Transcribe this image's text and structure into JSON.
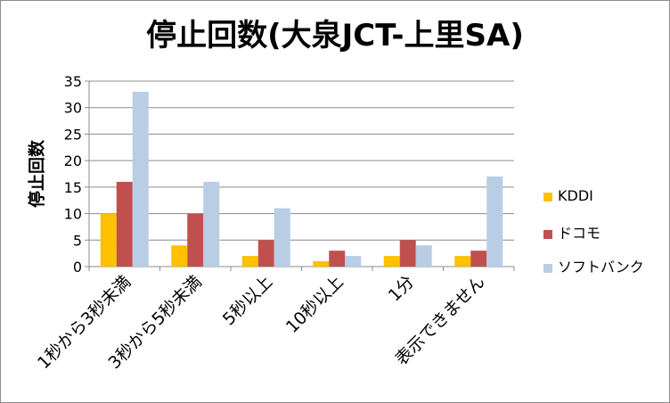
{
  "chart_data": {
    "type": "bar",
    "title": "停止回数(大泉JCT-上里SA)",
    "ylabel": "停止回数",
    "xlabel": "",
    "ylim": [
      0,
      35
    ],
    "yticks": [
      0,
      5,
      10,
      15,
      20,
      25,
      30,
      35
    ],
    "grid": true,
    "legend_position": "right",
    "categories": [
      "1秒から3秒未満",
      "3秒から5秒未満",
      "5秒以上",
      "10秒以上",
      "1分",
      "表示できません"
    ],
    "series": [
      {
        "name": "KDDI",
        "color": "#ffc000",
        "values": [
          10,
          4,
          2,
          1,
          2,
          2
        ]
      },
      {
        "name": "ドコモ",
        "color": "#c0504d",
        "values": [
          16,
          10,
          5,
          3,
          5,
          3
        ]
      },
      {
        "name": "ソフトバンク",
        "color": "#b9cde5",
        "values": [
          33,
          16,
          11,
          2,
          4,
          17
        ]
      }
    ]
  }
}
